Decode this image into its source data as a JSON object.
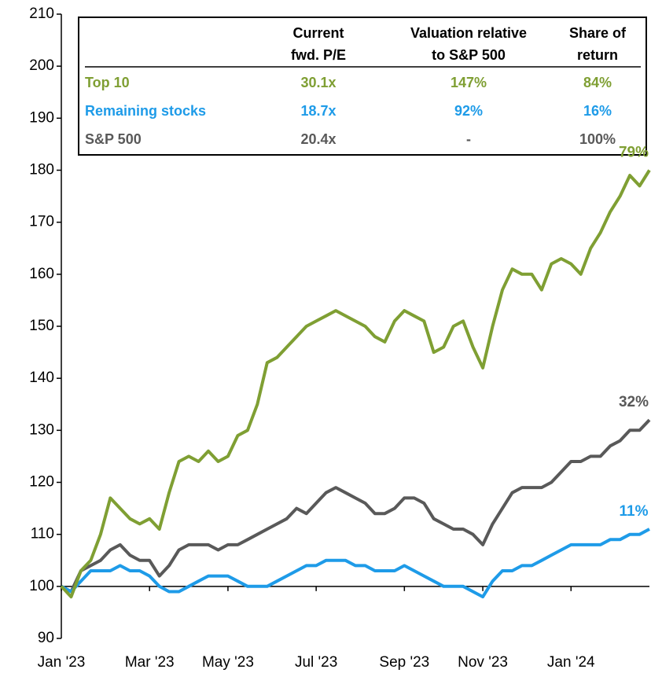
{
  "chart_data": {
    "type": "line",
    "categories": [
      "Jan '23",
      null,
      null,
      null,
      null,
      null,
      null,
      null,
      null,
      "Mar '23",
      null,
      null,
      null,
      null,
      null,
      null,
      null,
      "May '23",
      null,
      null,
      null,
      null,
      null,
      null,
      null,
      null,
      "Jul '23",
      null,
      null,
      null,
      null,
      null,
      null,
      null,
      null,
      "Sep '23",
      null,
      null,
      null,
      null,
      null,
      null,
      null,
      "Nov '23",
      null,
      null,
      null,
      null,
      null,
      null,
      null,
      null,
      "Jan '24",
      null,
      null,
      null,
      null,
      null,
      null,
      null,
      null
    ],
    "series": [
      {
        "name": "Top 10",
        "color": "#7f9f33",
        "end_label": "79%",
        "values": [
          100,
          98,
          103,
          105,
          110,
          117,
          115,
          113,
          112,
          113,
          111,
          118,
          124,
          125,
          124,
          126,
          124,
          125,
          129,
          130,
          135,
          143,
          144,
          146,
          148,
          150,
          151,
          152,
          153,
          152,
          151,
          150,
          148,
          147,
          151,
          153,
          152,
          151,
          145,
          146,
          150,
          151,
          146,
          142,
          150,
          157,
          161,
          160,
          160,
          157,
          162,
          163,
          162,
          160,
          165,
          168,
          172,
          175,
          179,
          177,
          180
        ]
      },
      {
        "name": "Remaining stocks",
        "color": "#1e9be8",
        "end_label": "11%",
        "values": [
          100,
          99,
          101,
          103,
          103,
          103,
          104,
          103,
          103,
          102,
          100,
          99,
          99,
          100,
          101,
          102,
          102,
          102,
          101,
          100,
          100,
          100,
          101,
          102,
          103,
          104,
          104,
          105,
          105,
          105,
          104,
          104,
          103,
          103,
          103,
          104,
          103,
          102,
          101,
          100,
          100,
          100,
          99,
          98,
          101,
          103,
          103,
          104,
          104,
          105,
          106,
          107,
          108,
          108,
          108,
          108,
          109,
          109,
          110,
          110,
          111
        ]
      },
      {
        "name": "S&P 500",
        "color": "#595959",
        "end_label": "32%",
        "values": [
          100,
          99,
          103,
          104,
          105,
          107,
          108,
          106,
          105,
          105,
          102,
          104,
          107,
          108,
          108,
          108,
          107,
          108,
          108,
          109,
          110,
          111,
          112,
          113,
          115,
          114,
          116,
          118,
          119,
          118,
          117,
          116,
          114,
          114,
          115,
          117,
          117,
          116,
          113,
          112,
          111,
          111,
          110,
          108,
          112,
          115,
          118,
          119,
          119,
          119,
          120,
          122,
          124,
          124,
          125,
          125,
          127,
          128,
          130,
          130,
          132
        ]
      }
    ],
    "ylim": [
      90,
      210
    ],
    "yticks": [
      90,
      100,
      110,
      120,
      130,
      140,
      150,
      160,
      170,
      180,
      190,
      200,
      210
    ],
    "x_axis_at": 100,
    "table": {
      "columns": [
        [
          "Current",
          "fwd. P/E"
        ],
        [
          "Valuation relative",
          "to S&P 500"
        ],
        [
          "Share of",
          "return"
        ]
      ],
      "rows": [
        [
          "Top 10",
          "30.1x",
          "147%",
          "84%"
        ],
        [
          "Remaining stocks",
          "18.7x",
          "92%",
          "16%"
        ],
        [
          "S&P 500",
          "20.4x",
          "-",
          "100%"
        ]
      ]
    }
  }
}
